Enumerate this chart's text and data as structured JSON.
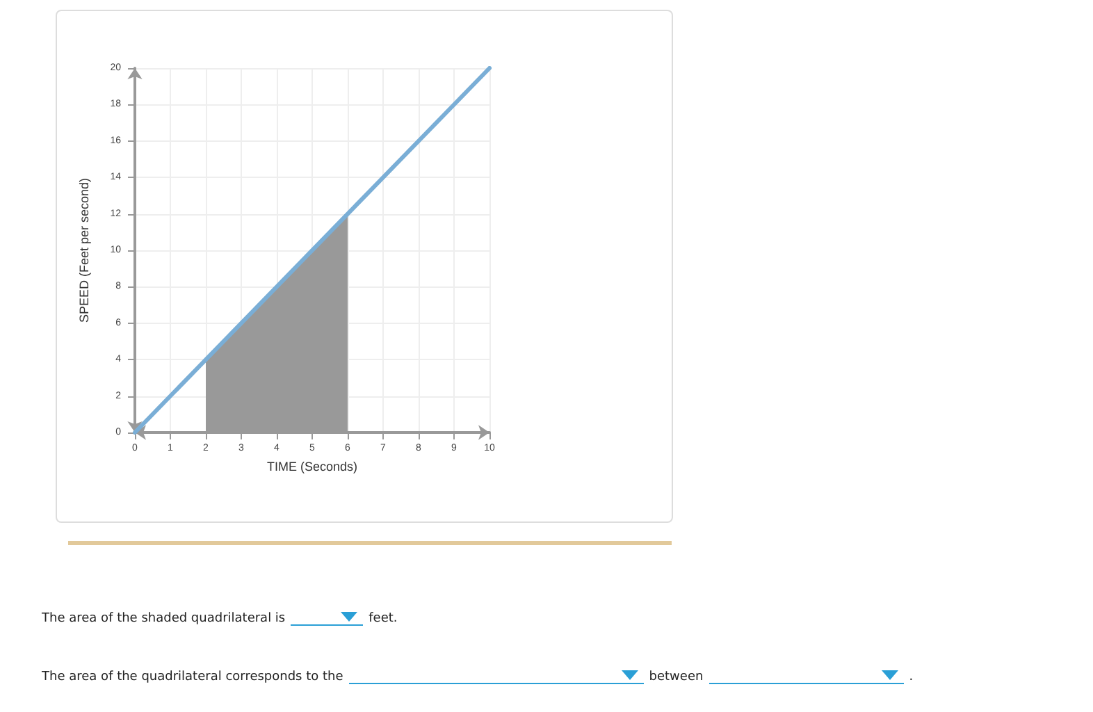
{
  "chart_data": {
    "type": "line",
    "xlabel": "TIME (Seconds)",
    "ylabel": "SPEED (Feet per second)",
    "series": [
      {
        "type": "area",
        "color": "#999999",
        "x": [
          2,
          6
        ],
        "values": [
          4,
          12
        ]
      },
      {
        "color": "#7aaed6",
        "x": [
          0,
          10
        ],
        "values": [
          0,
          20
        ]
      }
    ],
    "xlim": [
      0,
      10
    ],
    "xticks": [
      0,
      1,
      2,
      3,
      4,
      5,
      6,
      7,
      8,
      9,
      10
    ],
    "ylim": [
      0,
      20
    ],
    "yticks": [
      0,
      2,
      4,
      6,
      8,
      10,
      12,
      14,
      16,
      18,
      20
    ],
    "grid": true,
    "marker": "none",
    "line_style": "solid",
    "annotations": [
      "The area of the shaded quadrilateral is",
      "feet.",
      "The area of the quadrilateral corresponds to the",
      "between",
      "."
    ]
  }
}
